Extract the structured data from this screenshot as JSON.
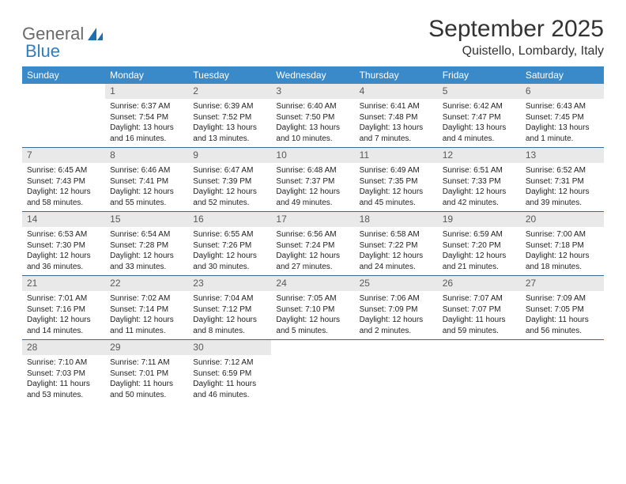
{
  "logo": {
    "word1": "General",
    "word2": "Blue"
  },
  "header": {
    "month_title": "September 2025",
    "location": "Quistello, Lombardy, Italy"
  },
  "day_names": [
    "Sunday",
    "Monday",
    "Tuesday",
    "Wednesday",
    "Thursday",
    "Friday",
    "Saturday"
  ],
  "colors": {
    "header_bg": "#3a89c9",
    "header_text": "#ffffff",
    "daynum_bg": "#e9e9e9",
    "daynum_text": "#595959",
    "rule": "#3a6a92",
    "logo_gray": "#6a6a6a",
    "logo_blue": "#2f7ec0",
    "body_text": "#222222",
    "title_text": "#333333"
  },
  "weeks": [
    [
      {
        "n": "",
        "empty": true
      },
      {
        "n": "1",
        "sr": "Sunrise: 6:37 AM",
        "ss": "Sunset: 7:54 PM",
        "dl1": "Daylight: 13 hours",
        "dl2": "and 16 minutes."
      },
      {
        "n": "2",
        "sr": "Sunrise: 6:39 AM",
        "ss": "Sunset: 7:52 PM",
        "dl1": "Daylight: 13 hours",
        "dl2": "and 13 minutes."
      },
      {
        "n": "3",
        "sr": "Sunrise: 6:40 AM",
        "ss": "Sunset: 7:50 PM",
        "dl1": "Daylight: 13 hours",
        "dl2": "and 10 minutes."
      },
      {
        "n": "4",
        "sr": "Sunrise: 6:41 AM",
        "ss": "Sunset: 7:48 PM",
        "dl1": "Daylight: 13 hours",
        "dl2": "and 7 minutes."
      },
      {
        "n": "5",
        "sr": "Sunrise: 6:42 AM",
        "ss": "Sunset: 7:47 PM",
        "dl1": "Daylight: 13 hours",
        "dl2": "and 4 minutes."
      },
      {
        "n": "6",
        "sr": "Sunrise: 6:43 AM",
        "ss": "Sunset: 7:45 PM",
        "dl1": "Daylight: 13 hours",
        "dl2": "and 1 minute."
      }
    ],
    [
      {
        "n": "7",
        "sr": "Sunrise: 6:45 AM",
        "ss": "Sunset: 7:43 PM",
        "dl1": "Daylight: 12 hours",
        "dl2": "and 58 minutes."
      },
      {
        "n": "8",
        "sr": "Sunrise: 6:46 AM",
        "ss": "Sunset: 7:41 PM",
        "dl1": "Daylight: 12 hours",
        "dl2": "and 55 minutes."
      },
      {
        "n": "9",
        "sr": "Sunrise: 6:47 AM",
        "ss": "Sunset: 7:39 PM",
        "dl1": "Daylight: 12 hours",
        "dl2": "and 52 minutes."
      },
      {
        "n": "10",
        "sr": "Sunrise: 6:48 AM",
        "ss": "Sunset: 7:37 PM",
        "dl1": "Daylight: 12 hours",
        "dl2": "and 49 minutes."
      },
      {
        "n": "11",
        "sr": "Sunrise: 6:49 AM",
        "ss": "Sunset: 7:35 PM",
        "dl1": "Daylight: 12 hours",
        "dl2": "and 45 minutes."
      },
      {
        "n": "12",
        "sr": "Sunrise: 6:51 AM",
        "ss": "Sunset: 7:33 PM",
        "dl1": "Daylight: 12 hours",
        "dl2": "and 42 minutes."
      },
      {
        "n": "13",
        "sr": "Sunrise: 6:52 AM",
        "ss": "Sunset: 7:31 PM",
        "dl1": "Daylight: 12 hours",
        "dl2": "and 39 minutes."
      }
    ],
    [
      {
        "n": "14",
        "sr": "Sunrise: 6:53 AM",
        "ss": "Sunset: 7:30 PM",
        "dl1": "Daylight: 12 hours",
        "dl2": "and 36 minutes."
      },
      {
        "n": "15",
        "sr": "Sunrise: 6:54 AM",
        "ss": "Sunset: 7:28 PM",
        "dl1": "Daylight: 12 hours",
        "dl2": "and 33 minutes."
      },
      {
        "n": "16",
        "sr": "Sunrise: 6:55 AM",
        "ss": "Sunset: 7:26 PM",
        "dl1": "Daylight: 12 hours",
        "dl2": "and 30 minutes."
      },
      {
        "n": "17",
        "sr": "Sunrise: 6:56 AM",
        "ss": "Sunset: 7:24 PM",
        "dl1": "Daylight: 12 hours",
        "dl2": "and 27 minutes."
      },
      {
        "n": "18",
        "sr": "Sunrise: 6:58 AM",
        "ss": "Sunset: 7:22 PM",
        "dl1": "Daylight: 12 hours",
        "dl2": "and 24 minutes."
      },
      {
        "n": "19",
        "sr": "Sunrise: 6:59 AM",
        "ss": "Sunset: 7:20 PM",
        "dl1": "Daylight: 12 hours",
        "dl2": "and 21 minutes."
      },
      {
        "n": "20",
        "sr": "Sunrise: 7:00 AM",
        "ss": "Sunset: 7:18 PM",
        "dl1": "Daylight: 12 hours",
        "dl2": "and 18 minutes."
      }
    ],
    [
      {
        "n": "21",
        "sr": "Sunrise: 7:01 AM",
        "ss": "Sunset: 7:16 PM",
        "dl1": "Daylight: 12 hours",
        "dl2": "and 14 minutes."
      },
      {
        "n": "22",
        "sr": "Sunrise: 7:02 AM",
        "ss": "Sunset: 7:14 PM",
        "dl1": "Daylight: 12 hours",
        "dl2": "and 11 minutes."
      },
      {
        "n": "23",
        "sr": "Sunrise: 7:04 AM",
        "ss": "Sunset: 7:12 PM",
        "dl1": "Daylight: 12 hours",
        "dl2": "and 8 minutes."
      },
      {
        "n": "24",
        "sr": "Sunrise: 7:05 AM",
        "ss": "Sunset: 7:10 PM",
        "dl1": "Daylight: 12 hours",
        "dl2": "and 5 minutes."
      },
      {
        "n": "25",
        "sr": "Sunrise: 7:06 AM",
        "ss": "Sunset: 7:09 PM",
        "dl1": "Daylight: 12 hours",
        "dl2": "and 2 minutes."
      },
      {
        "n": "26",
        "sr": "Sunrise: 7:07 AM",
        "ss": "Sunset: 7:07 PM",
        "dl1": "Daylight: 11 hours",
        "dl2": "and 59 minutes."
      },
      {
        "n": "27",
        "sr": "Sunrise: 7:09 AM",
        "ss": "Sunset: 7:05 PM",
        "dl1": "Daylight: 11 hours",
        "dl2": "and 56 minutes."
      }
    ],
    [
      {
        "n": "28",
        "sr": "Sunrise: 7:10 AM",
        "ss": "Sunset: 7:03 PM",
        "dl1": "Daylight: 11 hours",
        "dl2": "and 53 minutes."
      },
      {
        "n": "29",
        "sr": "Sunrise: 7:11 AM",
        "ss": "Sunset: 7:01 PM",
        "dl1": "Daylight: 11 hours",
        "dl2": "and 50 minutes."
      },
      {
        "n": "30",
        "sr": "Sunrise: 7:12 AM",
        "ss": "Sunset: 6:59 PM",
        "dl1": "Daylight: 11 hours",
        "dl2": "and 46 minutes."
      },
      {
        "n": "",
        "empty": true
      },
      {
        "n": "",
        "empty": true
      },
      {
        "n": "",
        "empty": true
      },
      {
        "n": "",
        "empty": true
      }
    ]
  ]
}
